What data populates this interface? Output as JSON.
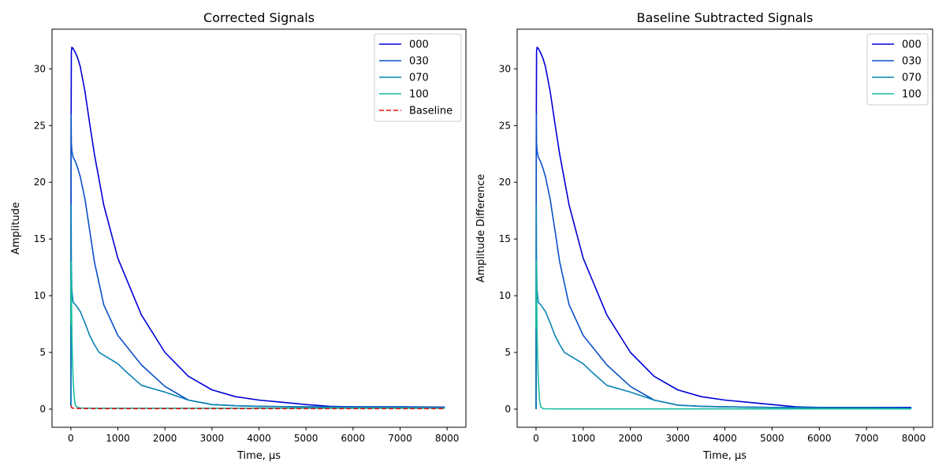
{
  "chart_data": [
    {
      "type": "line",
      "title": "Corrected Signals",
      "xlabel": "Time, µs",
      "ylabel": "Amplitude",
      "xlim": [
        -400,
        8400
      ],
      "ylim": [
        -1.6,
        33.5
      ],
      "xticks": [
        0,
        1000,
        2000,
        3000,
        4000,
        5000,
        6000,
        7000,
        8000
      ],
      "yticks": [
        0,
        5,
        10,
        15,
        20,
        25,
        30
      ],
      "grid": false,
      "legend_position": "top-right",
      "series": [
        {
          "name": "000",
          "color": "#0000d8",
          "dash": "solid",
          "x": [
            0,
            5,
            10,
            20,
            50,
            100,
            150,
            200,
            300,
            400,
            500,
            700,
            1000,
            1500,
            2000,
            2500,
            3000,
            3500,
            4000,
            4500,
            5000,
            5500,
            6000,
            7000,
            7950
          ],
          "y": [
            0.3,
            25.0,
            31.5,
            31.9,
            31.8,
            31.4,
            30.9,
            30.2,
            28.0,
            25.2,
            22.5,
            18.0,
            13.3,
            8.3,
            5.0,
            2.9,
            1.7,
            1.1,
            0.8,
            0.6,
            0.4,
            0.25,
            0.2,
            0.2,
            0.18
          ]
        },
        {
          "name": "030",
          "color": "#0a50c8",
          "dash": "solid",
          "x": [
            0,
            5,
            10,
            20,
            50,
            100,
            150,
            200,
            300,
            400,
            500,
            700,
            1000,
            1500,
            2000,
            2500,
            3000,
            3500,
            4000,
            5000,
            6000,
            7000,
            7950
          ],
          "y": [
            0.3,
            26.0,
            23.5,
            22.8,
            22.2,
            21.8,
            21.2,
            20.5,
            18.5,
            15.8,
            13.0,
            9.2,
            6.5,
            3.9,
            2.0,
            0.8,
            0.4,
            0.3,
            0.25,
            0.2,
            0.2,
            0.2,
            0.15
          ]
        },
        {
          "name": "070",
          "color": "#0a82b4",
          "dash": "solid",
          "x": [
            0,
            5,
            10,
            20,
            50,
            100,
            200,
            300,
            400,
            500,
            600,
            800,
            1000,
            1200,
            1500,
            2000,
            2500,
            3000,
            3500,
            4000,
            5000,
            6000,
            7000,
            7950
          ],
          "y": [
            0.3,
            18.0,
            13.0,
            10.5,
            9.4,
            9.2,
            8.6,
            7.6,
            6.5,
            5.7,
            5.0,
            4.5,
            4.0,
            3.2,
            2.1,
            1.5,
            0.8,
            0.4,
            0.3,
            0.25,
            0.2,
            0.15,
            0.15,
            0.1
          ]
        },
        {
          "name": "100",
          "color": "#14bea0",
          "dash": "solid",
          "x": [
            0,
            5,
            10,
            20,
            30,
            50,
            75,
            100,
            150,
            200,
            500,
            1000,
            2000,
            4000,
            6000,
            7950
          ],
          "y": [
            7.4,
            13.0,
            11.0,
            7.0,
            5.0,
            2.5,
            0.9,
            0.3,
            0.15,
            0.1,
            0.08,
            0.08,
            0.08,
            0.08,
            0.08,
            0.08
          ]
        },
        {
          "name": "Baseline",
          "color": "#e01010",
          "dash": "dashed",
          "x": [
            0,
            20,
            50,
            100,
            500,
            2000,
            4000,
            6000,
            7950
          ],
          "y": [
            0.3,
            0.12,
            0.08,
            0.06,
            0.05,
            0.05,
            0.05,
            0.05,
            0.05
          ]
        }
      ]
    },
    {
      "type": "line",
      "title": "Baseline Subtracted Signals",
      "xlabel": "Time, µs",
      "ylabel": "Amplitude Difference",
      "xlim": [
        -400,
        8400
      ],
      "ylim": [
        -1.6,
        33.5
      ],
      "xticks": [
        0,
        1000,
        2000,
        3000,
        4000,
        5000,
        6000,
        7000,
        8000
      ],
      "yticks": [
        0,
        5,
        10,
        15,
        20,
        25,
        30
      ],
      "grid": false,
      "legend_position": "top-right",
      "series": [
        {
          "name": "000",
          "color": "#0000d8",
          "dash": "solid",
          "x": [
            0,
            5,
            10,
            20,
            50,
            100,
            150,
            200,
            300,
            400,
            500,
            700,
            1000,
            1500,
            2000,
            2500,
            3000,
            3500,
            4000,
            4500,
            5000,
            5500,
            6000,
            7000,
            7950
          ],
          "y": [
            0.0,
            25.0,
            31.5,
            31.9,
            31.8,
            31.4,
            30.9,
            30.2,
            28.0,
            25.2,
            22.5,
            18.0,
            13.3,
            8.3,
            5.0,
            2.9,
            1.7,
            1.1,
            0.8,
            0.6,
            0.4,
            0.2,
            0.15,
            0.15,
            0.15
          ]
        },
        {
          "name": "030",
          "color": "#0a50c8",
          "dash": "solid",
          "x": [
            0,
            5,
            10,
            20,
            50,
            100,
            150,
            200,
            300,
            400,
            500,
            700,
            1000,
            1500,
            2000,
            2500,
            3000,
            3500,
            4000,
            5000,
            6000,
            7000,
            7950
          ],
          "y": [
            0.0,
            26.0,
            23.5,
            22.8,
            22.2,
            21.8,
            21.2,
            20.5,
            18.5,
            15.8,
            13.0,
            9.2,
            6.5,
            3.9,
            2.0,
            0.8,
            0.35,
            0.25,
            0.2,
            0.15,
            0.15,
            0.15,
            0.1
          ]
        },
        {
          "name": "070",
          "color": "#0a82b4",
          "dash": "solid",
          "x": [
            0,
            5,
            10,
            20,
            50,
            100,
            200,
            300,
            400,
            500,
            600,
            800,
            1000,
            1200,
            1500,
            2000,
            2500,
            3000,
            3500,
            4000,
            5000,
            6000,
            7000,
            7950
          ],
          "y": [
            0.0,
            18.0,
            13.0,
            10.5,
            9.4,
            9.2,
            8.6,
            7.6,
            6.5,
            5.7,
            5.0,
            4.5,
            4.0,
            3.2,
            2.1,
            1.5,
            0.8,
            0.35,
            0.25,
            0.2,
            0.15,
            0.1,
            0.1,
            0.05
          ]
        },
        {
          "name": "100",
          "color": "#14bea0",
          "dash": "solid",
          "x": [
            0,
            5,
            10,
            20,
            30,
            50,
            75,
            100,
            150,
            200,
            500,
            1000,
            2000,
            4000,
            6000,
            7950
          ],
          "y": [
            7.1,
            13.0,
            11.0,
            7.0,
            5.0,
            2.5,
            0.8,
            0.2,
            0.05,
            0.03,
            0.02,
            0.02,
            0.02,
            0.02,
            0.02,
            0.02
          ]
        }
      ]
    }
  ]
}
